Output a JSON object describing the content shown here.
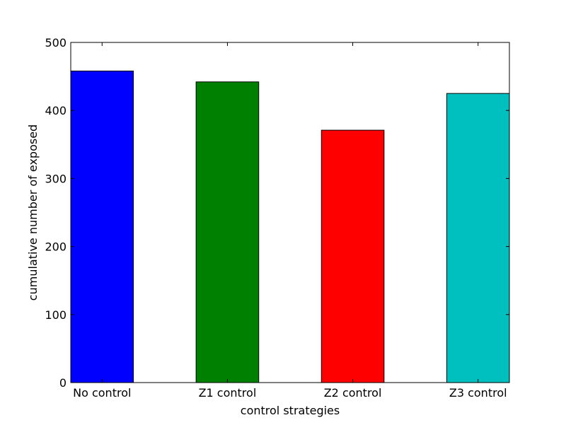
{
  "chart_data": {
    "type": "bar",
    "categories": [
      "No control",
      "Z1 control",
      "Z2 control",
      "Z3 control"
    ],
    "values": [
      458,
      442,
      371,
      425
    ],
    "colors": [
      "#0000ff",
      "#008000",
      "#ff0000",
      "#00bfbf"
    ],
    "xlabel": "control strategies",
    "ylabel": "cumulative number of exposed",
    "ylim": [
      0,
      500
    ],
    "yticks": [
      0,
      100,
      200,
      300,
      400,
      500
    ],
    "grid": false,
    "legend": "none"
  }
}
